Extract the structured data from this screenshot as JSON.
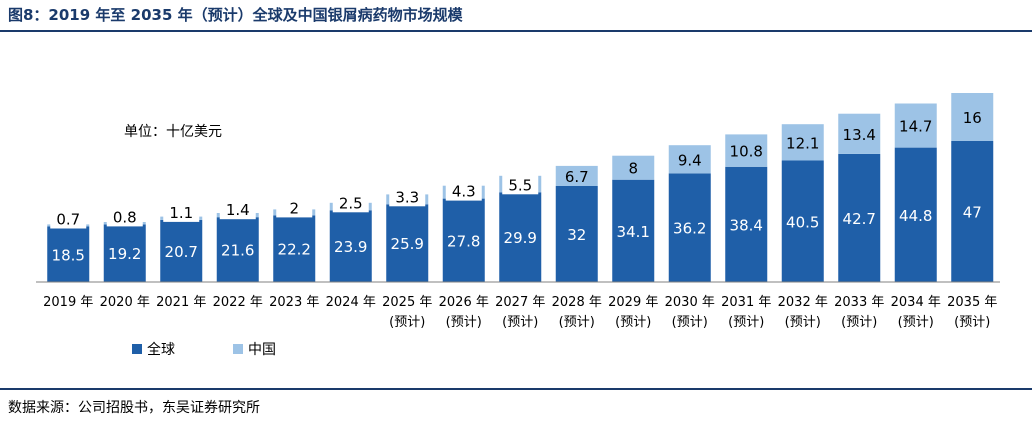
{
  "figure": {
    "title": "图8：2019 年至 2035 年（预计）全球及中国银屑病药物市场规模",
    "source": "数据来源：公司招股书，东吴证券研究所"
  },
  "chart_data": {
    "type": "bar",
    "stacked": true,
    "unit_note": "单位：十亿美元",
    "categories": [
      "2019 年",
      "2020 年",
      "2021 年",
      "2022 年",
      "2023 年",
      "2024 年",
      "2025 年",
      "2026 年",
      "2027 年",
      "2028 年",
      "2029 年",
      "2030 年",
      "2031 年",
      "2032 年",
      "2033 年",
      "2034 年",
      "2035 年"
    ],
    "category_sublabels": [
      "",
      "",
      "",
      "",
      "",
      "",
      "(预计)",
      "(预计)",
      "(预计)",
      "(预计)",
      "(预计)",
      "(预计)",
      "(预计)",
      "(预计)",
      "(预计)",
      "(预计)",
      "(预计)"
    ],
    "series": [
      {
        "name": "全球",
        "color": "#1f5fa8",
        "values": [
          18.5,
          19.2,
          20.7,
          21.6,
          22.2,
          23.9,
          25.9,
          27.8,
          29.9,
          32,
          34.1,
          36.2,
          38.4,
          40.5,
          42.7,
          44.8,
          47
        ]
      },
      {
        "name": "中国",
        "color": "#9dc3e6",
        "values": [
          0.7,
          0.8,
          1.1,
          1.4,
          2,
          2.5,
          3.3,
          4.3,
          5.5,
          6.7,
          8,
          9.4,
          10.8,
          12.1,
          13.4,
          14.7,
          16
        ]
      }
    ],
    "ylim": [
      0,
      70
    ],
    "legend_position": "bottom-left",
    "grid": false
  }
}
